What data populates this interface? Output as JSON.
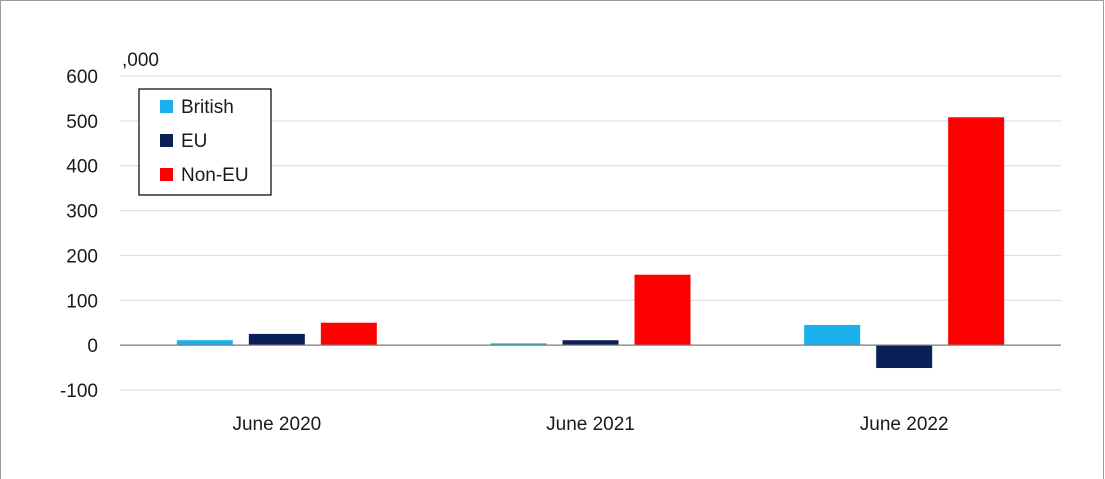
{
  "chart_data": {
    "type": "bar",
    "unit_label": ",000",
    "categories": [
      "June 2020",
      "June 2021",
      "June 2022"
    ],
    "series": [
      {
        "name": "British",
        "color": "#1ab0ee",
        "values": [
          11,
          4,
          45
        ]
      },
      {
        "name": "EU",
        "color": "#0a2157",
        "values": [
          25,
          11,
          -51
        ]
      },
      {
        "name": "Non-EU",
        "color": "#ff0000",
        "values": [
          50,
          157,
          508
        ]
      }
    ],
    "ylim": [
      -100,
      600
    ],
    "yticks": [
      600,
      500,
      400,
      300,
      200,
      100,
      0,
      -100
    ],
    "ytick_labels": [
      "600",
      "500",
      "400",
      "300",
      "200",
      "100",
      "0",
      "-100"
    ],
    "grid": true,
    "legend_position": "top-left"
  }
}
